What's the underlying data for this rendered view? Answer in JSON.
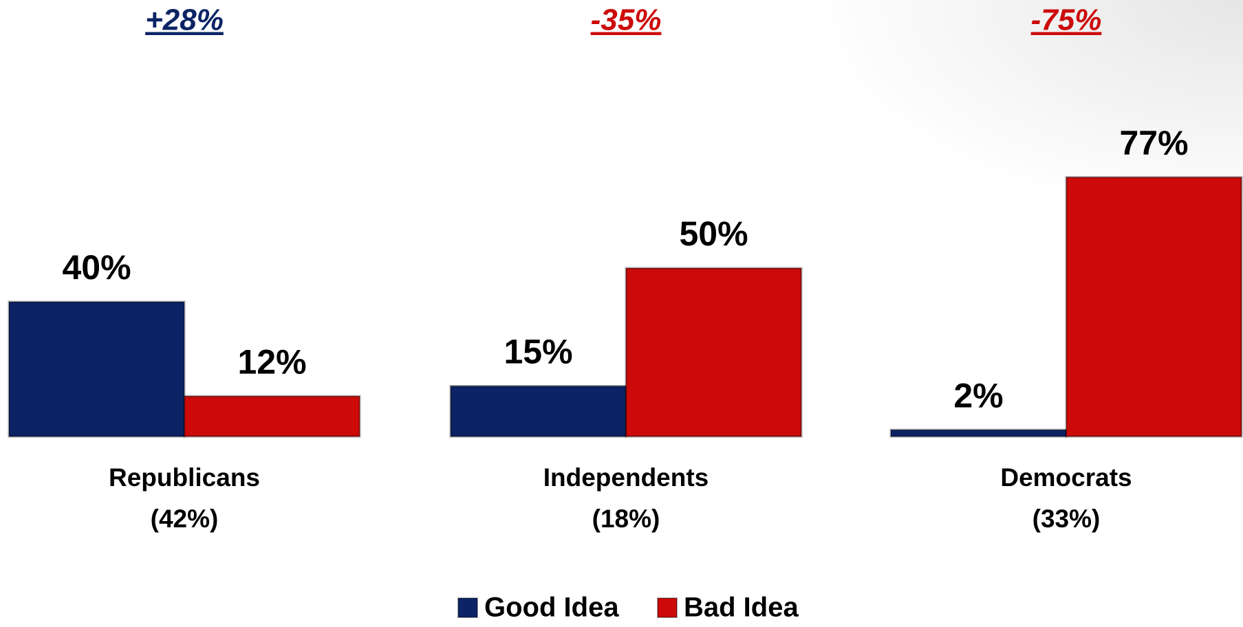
{
  "chart_data": {
    "type": "bar",
    "categories": [
      [
        "Republicans",
        "(42%)"
      ],
      [
        "Independents",
        "(18%)"
      ],
      [
        "Democrats",
        "(33%)"
      ]
    ],
    "net_labels": [
      "+28%",
      "-35%",
      "-75%"
    ],
    "net_colors": [
      "#0c2466",
      "#cc0a0a",
      "#cc0a0a"
    ],
    "series": [
      {
        "name": "Good Idea",
        "color": "#0c2466",
        "values": [
          40,
          15,
          2
        ],
        "value_labels": [
          "40%",
          "15%",
          "2%"
        ]
      },
      {
        "name": "Bad Idea",
        "color": "#cc0a0a",
        "values": [
          12,
          50,
          77
        ],
        "value_labels": [
          "12%",
          "50%",
          "77%"
        ]
      }
    ]
  }
}
